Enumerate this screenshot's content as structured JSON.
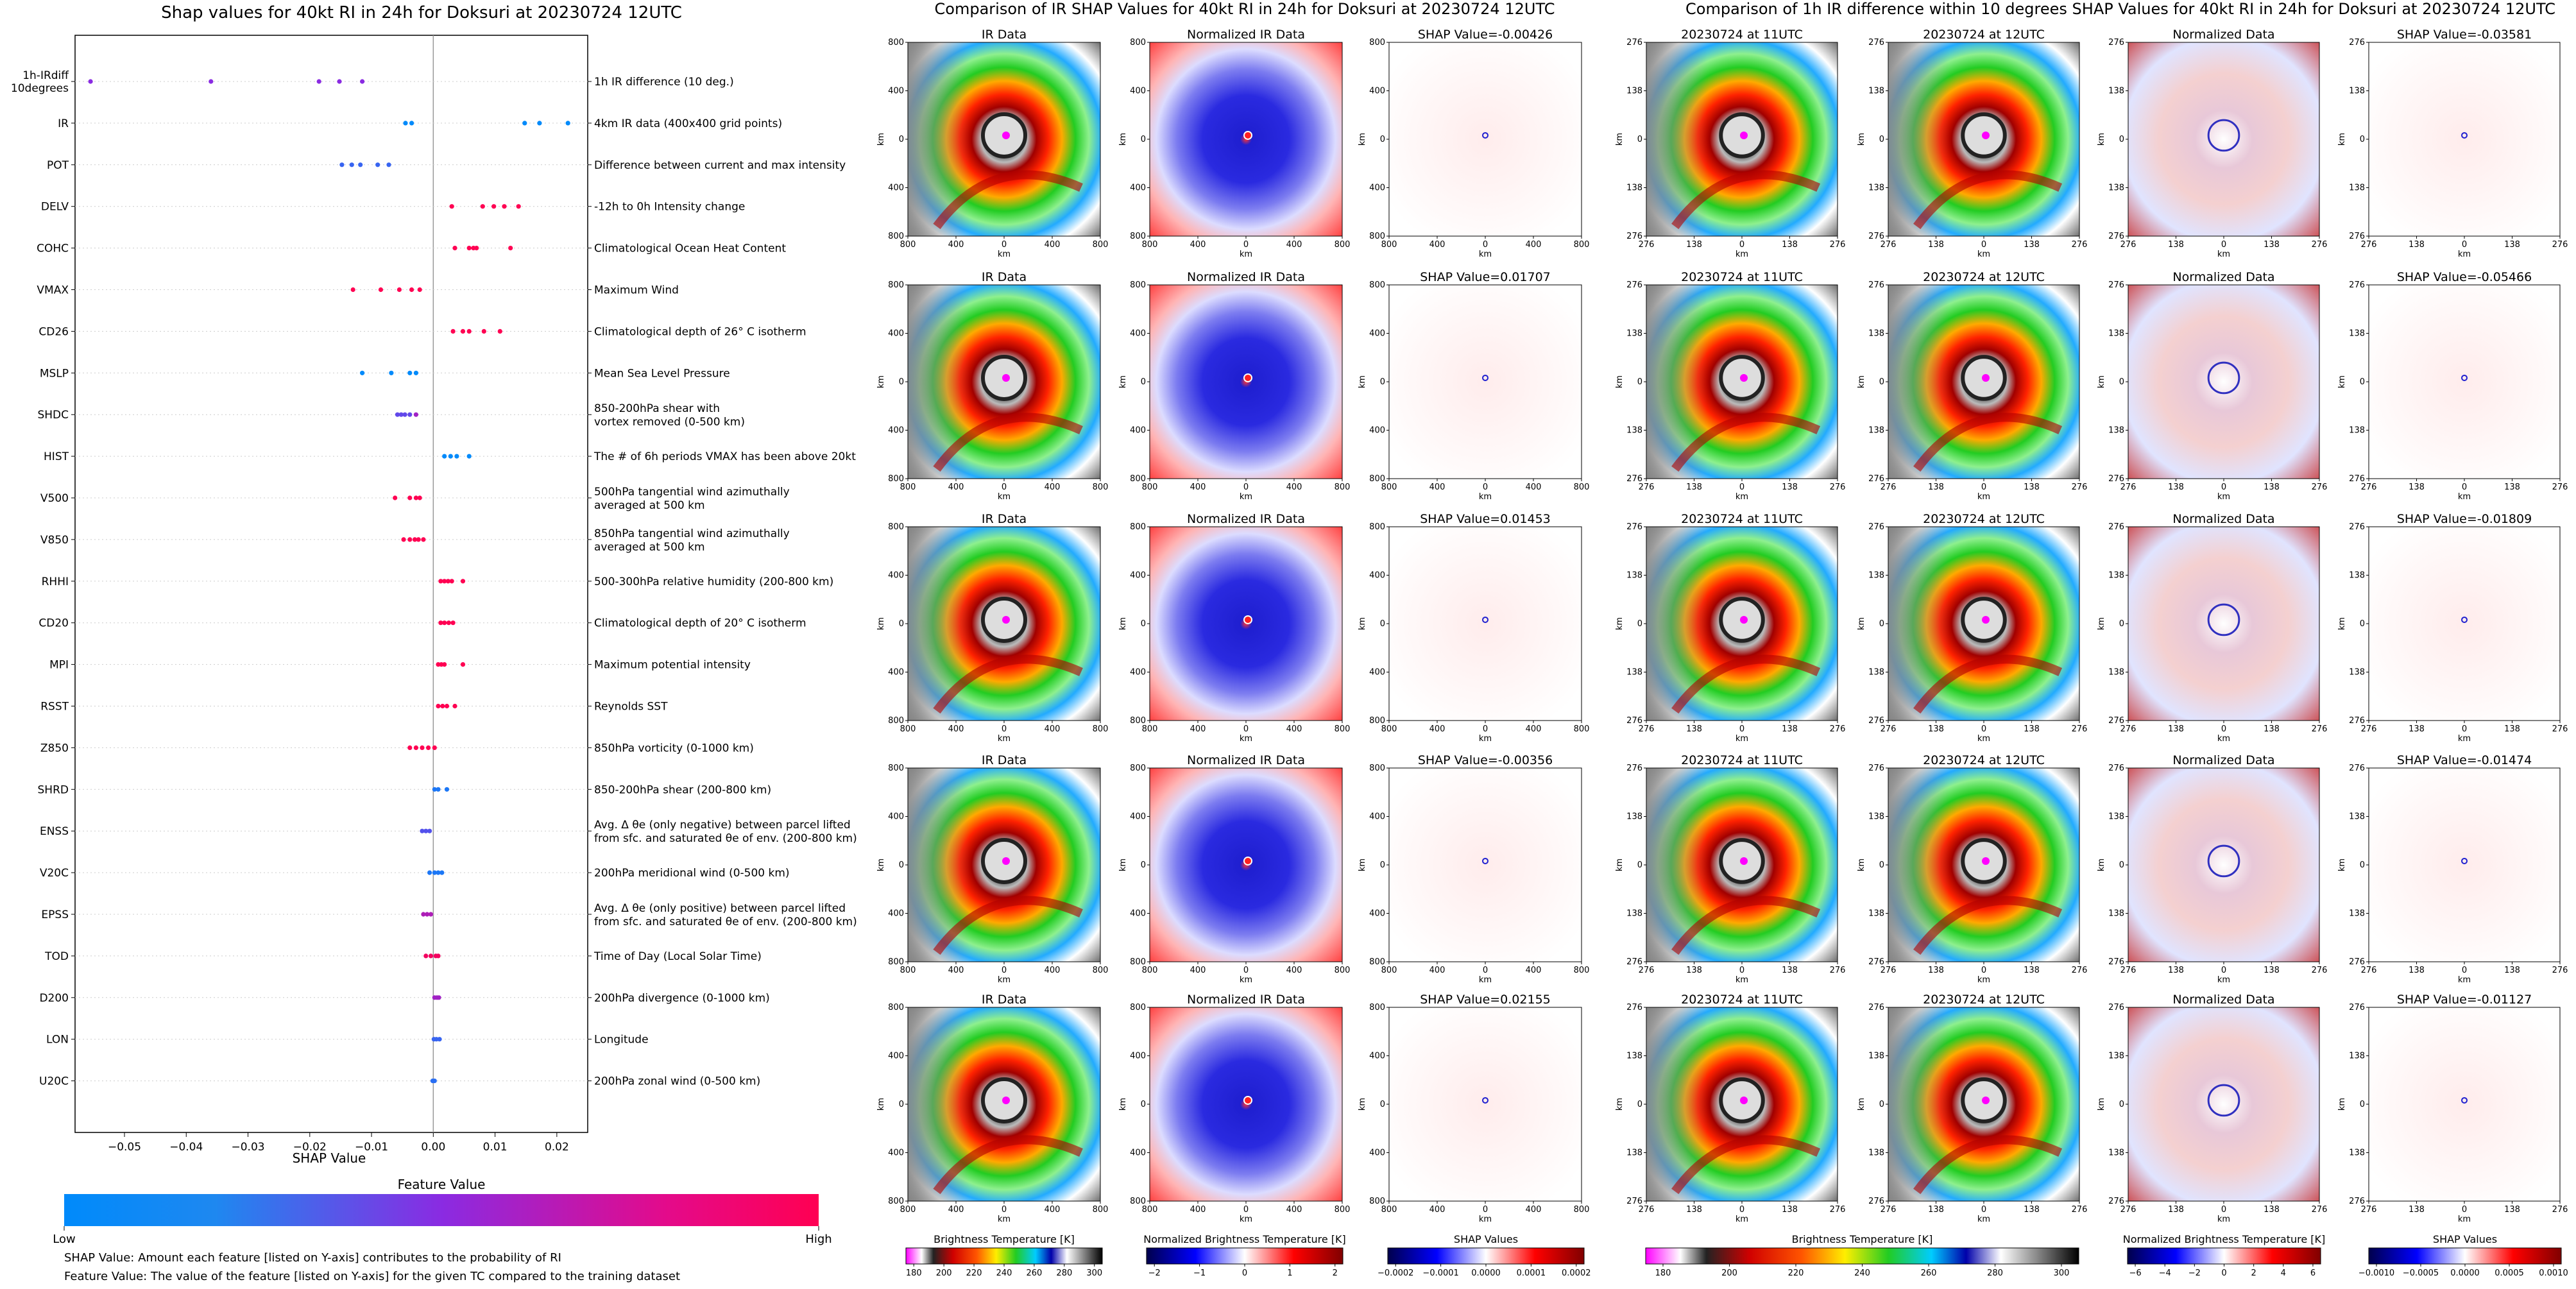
{
  "figure": {
    "left_title": "Shap values for 40kt RI in 24h for Doksuri at 20230724 12UTC",
    "middle_title": "Comparison of IR SHAP Values for 40kt RI in 24h for Doksuri at 20230724 12UTC",
    "right_title": "Comparison of 1h IR difference within 10 degrees SHAP Values for 40kt RI in 24h for Doksuri at 20230724 12UTC"
  },
  "chart_data": [
    {
      "type": "scatter",
      "name": "shap_summary",
      "title": "Shap values for 40kt RI in 24h for Doksuri at 20230724 12UTC",
      "xlabel": "SHAP Value",
      "xlim": [
        -0.058,
        0.025
      ],
      "xticks": [
        -0.05,
        -0.04,
        -0.03,
        -0.02,
        -0.01,
        0.0,
        0.01,
        0.02
      ],
      "xtick_labels": [
        "−0.05",
        "−0.04",
        "−0.03",
        "−0.02",
        "−0.01",
        "0.00",
        "0.01",
        "0.02"
      ],
      "colorbar": {
        "label": "Feature Value",
        "low": "Low",
        "high": "High",
        "colors": [
          "#008afb",
          "#8a2be2",
          "#ff0052"
        ]
      },
      "notes": [
        "SHAP Value: Amount each feature [listed on Y-axis] contributes to the probability of RI",
        "Feature Value: The value of the feature [listed on Y-axis] for the given TC compared to the training dataset"
      ],
      "features": [
        {
          "name": "1h-IRdiff\n10degrees",
          "desc": "1h IR difference (10 deg.)",
          "points": [
            [
              -0.0555,
              0.5
            ],
            [
              -0.036,
              0.5
            ],
            [
              -0.0185,
              0.5
            ],
            [
              -0.0152,
              0.5
            ],
            [
              -0.0115,
              0.5
            ]
          ]
        },
        {
          "name": "IR",
          "desc": "4km IR data (400x400 grid points)",
          "points": [
            [
              -0.0045,
              0.0
            ],
            [
              -0.0035,
              0.0
            ],
            [
              0.0148,
              0.0
            ],
            [
              0.0172,
              0.0
            ],
            [
              0.0218,
              0.0
            ]
          ]
        },
        {
          "name": "POT",
          "desc": "Difference between current and max intensity",
          "points": [
            [
              -0.0148,
              0.2
            ],
            [
              -0.0132,
              0.2
            ],
            [
              -0.0118,
              0.2
            ],
            [
              -0.009,
              0.2
            ],
            [
              -0.0072,
              0.2
            ]
          ]
        },
        {
          "name": "DELV",
          "desc": "-12h to 0h Intensity change",
          "points": [
            [
              0.003,
              1.0
            ],
            [
              0.008,
              1.0
            ],
            [
              0.0098,
              1.0
            ],
            [
              0.0115,
              1.0
            ],
            [
              0.0138,
              1.0
            ]
          ]
        },
        {
          "name": "COHC",
          "desc": "Climatological Ocean Heat Content",
          "points": [
            [
              0.0035,
              1.0
            ],
            [
              0.0058,
              1.0
            ],
            [
              0.0065,
              1.0
            ],
            [
              0.007,
              1.0
            ],
            [
              0.0125,
              1.0
            ]
          ]
        },
        {
          "name": "VMAX",
          "desc": "Maximum Wind",
          "points": [
            [
              -0.013,
              1.0
            ],
            [
              -0.0085,
              1.0
            ],
            [
              -0.0055,
              1.0
            ],
            [
              -0.0035,
              1.0
            ],
            [
              -0.0022,
              1.0
            ]
          ]
        },
        {
          "name": "CD26",
          "desc": "Climatological depth of 26° C isotherm",
          "points": [
            [
              0.0032,
              1.0
            ],
            [
              0.0048,
              1.0
            ],
            [
              0.0058,
              1.0
            ],
            [
              0.0082,
              1.0
            ],
            [
              0.0108,
              1.0
            ]
          ]
        },
        {
          "name": "MSLP",
          "desc": "Mean Sea Level Pressure",
          "points": [
            [
              -0.0115,
              0.0
            ],
            [
              -0.0068,
              0.0
            ],
            [
              -0.0038,
              0.0
            ],
            [
              -0.0028,
              0.0
            ]
          ]
        },
        {
          "name": "SHDC",
          "desc": "850-200hPa shear with\nvortex removed (0-500 km)",
          "points": [
            [
              -0.0058,
              0.35
            ],
            [
              -0.0052,
              0.35
            ],
            [
              -0.0046,
              0.35
            ],
            [
              -0.0038,
              0.35
            ],
            [
              -0.0028,
              0.6
            ]
          ]
        },
        {
          "name": "HIST",
          "desc": "The # of 6h periods VMAX has been above 20kt",
          "points": [
            [
              0.0018,
              0.0
            ],
            [
              0.0028,
              0.0
            ],
            [
              0.0038,
              0.0
            ],
            [
              0.0058,
              0.0
            ]
          ]
        },
        {
          "name": "V500",
          "desc": "500hPa tangential wind azimuthally\naveraged at 500 km",
          "points": [
            [
              -0.0062,
              1.0
            ],
            [
              -0.0038,
              1.0
            ],
            [
              -0.0028,
              1.0
            ],
            [
              -0.0022,
              1.0
            ]
          ]
        },
        {
          "name": "V850",
          "desc": "850hPa tangential wind azimuthally\naveraged at 500 km",
          "points": [
            [
              -0.0048,
              1.0
            ],
            [
              -0.0038,
              1.0
            ],
            [
              -0.003,
              1.0
            ],
            [
              -0.0024,
              1.0
            ],
            [
              -0.0016,
              1.0
            ]
          ]
        },
        {
          "name": "RHHI",
          "desc": "500-300hPa relative humidity (200-800 km)",
          "points": [
            [
              0.0012,
              1.0
            ],
            [
              0.0018,
              1.0
            ],
            [
              0.0024,
              1.0
            ],
            [
              0.003,
              1.0
            ],
            [
              0.0048,
              1.0
            ]
          ]
        },
        {
          "name": "CD20",
          "desc": "Climatological depth of 20° C isotherm",
          "points": [
            [
              0.0012,
              1.0
            ],
            [
              0.0018,
              1.0
            ],
            [
              0.0025,
              1.0
            ],
            [
              0.0032,
              1.0
            ]
          ]
        },
        {
          "name": "MPI",
          "desc": "Maximum potential intensity",
          "points": [
            [
              0.0008,
              1.0
            ],
            [
              0.0013,
              1.0
            ],
            [
              0.0018,
              1.0
            ],
            [
              0.0048,
              1.0
            ]
          ]
        },
        {
          "name": "RSST",
          "desc": "Reynolds SST",
          "points": [
            [
              0.0008,
              1.0
            ],
            [
              0.0015,
              1.0
            ],
            [
              0.0022,
              1.0
            ],
            [
              0.0035,
              1.0
            ]
          ]
        },
        {
          "name": "Z850",
          "desc": "850hPa vorticity (0-1000 km)",
          "points": [
            [
              -0.0038,
              1.0
            ],
            [
              -0.0028,
              1.0
            ],
            [
              -0.0018,
              1.0
            ],
            [
              -0.0008,
              1.0
            ],
            [
              0.0002,
              1.0
            ]
          ]
        },
        {
          "name": "SHRD",
          "desc": "850-200hPa shear (200-800 km)",
          "points": [
            [
              0.0002,
              0.1
            ],
            [
              0.0008,
              0.1
            ],
            [
              0.0022,
              0.1
            ]
          ]
        },
        {
          "name": "ENSS",
          "desc": "Avg. Δ θe (only negative) between parcel lifted\nfrom sfc. and saturated θe of env. (200-800 km)",
          "points": [
            [
              -0.0018,
              0.3
            ],
            [
              -0.0012,
              0.3
            ],
            [
              -0.0006,
              0.3
            ]
          ]
        },
        {
          "name": "V20C",
          "desc": "200hPa meridional wind (0-500 km)",
          "points": [
            [
              -0.0006,
              0.1
            ],
            [
              0.0002,
              0.1
            ],
            [
              0.0008,
              0.1
            ],
            [
              0.0014,
              0.1
            ]
          ]
        },
        {
          "name": "EPSS",
          "desc": "Avg. Δ θe (only positive) between parcel lifted\nfrom sfc. and saturated θe of env. (200-800 km)",
          "points": [
            [
              -0.0016,
              0.65
            ],
            [
              -0.001,
              0.65
            ],
            [
              -0.0004,
              0.65
            ]
          ]
        },
        {
          "name": "TOD",
          "desc": "Time of Day (Local Solar Time)",
          "points": [
            [
              -0.0012,
              0.95
            ],
            [
              -0.0004,
              0.95
            ],
            [
              0.0004,
              0.95
            ],
            [
              0.0008,
              0.95
            ]
          ]
        },
        {
          "name": "D200",
          "desc": "200hPa divergence (0-1000 km)",
          "points": [
            [
              0.0002,
              0.6
            ],
            [
              0.0006,
              0.6
            ],
            [
              0.0009,
              0.6
            ]
          ]
        },
        {
          "name": "LON",
          "desc": "Longitude",
          "points": [
            [
              0.0001,
              0.2
            ],
            [
              0.0005,
              0.2
            ],
            [
              0.001,
              0.2
            ]
          ]
        },
        {
          "name": "U20C",
          "desc": "200hPa zonal wind (0-500 km)",
          "points": [
            [
              -0.0001,
              0.15
            ],
            [
              0.0002,
              0.15
            ]
          ]
        }
      ]
    },
    {
      "type": "heatmap",
      "name": "ir_comparison_grid",
      "title": "Comparison of IR SHAP Values for 40kt RI in 24h for Doksuri at 20230724 12UTC",
      "column_titles": [
        "IR Data",
        "Normalized IR Data"
      ],
      "shap_titles": [
        "SHAP Value=-0.00426",
        "SHAP Value=0.01707",
        "SHAP Value=0.01453",
        "SHAP Value=-0.00356",
        "SHAP Value=0.02155"
      ],
      "xlabel": "km",
      "ylabel": "km",
      "ticks": [
        "800",
        "400",
        "0",
        "400",
        "800"
      ],
      "colorbars": [
        {
          "label": "Brightness Temperature [K]",
          "ticks": [
            "180",
            "200",
            "220",
            "240",
            "260",
            "280",
            "300"
          ]
        },
        {
          "label": "Normalized Brightness Temperature [K]",
          "ticks": [
            "−2",
            "−1",
            "0",
            "1",
            "2"
          ]
        },
        {
          "label": "SHAP Values",
          "ticks": [
            "−0.0002",
            "−0.0001",
            "0.0000",
            "0.0001",
            "0.0002"
          ]
        }
      ]
    },
    {
      "type": "heatmap",
      "name": "irdiff_comparison_grid",
      "title": "Comparison of 1h IR difference within 10 degrees SHAP Values for 40kt RI in 24h for Doksuri at 20230724 12UTC",
      "column_titles": [
        "20230724 at 11UTC",
        "20230724 at 12UTC",
        "Normalized Data"
      ],
      "shap_titles": [
        "SHAP Value=-0.03581",
        "SHAP Value=-0.05466",
        "SHAP Value=-0.01809",
        "SHAP Value=-0.01474",
        "SHAP Value=-0.01127"
      ],
      "xlabel": "km",
      "ylabel": "km",
      "ticks": [
        "276",
        "138",
        "0",
        "138",
        "276"
      ],
      "colorbars": [
        {
          "label": "Brightness Temperature [K]",
          "ticks": [
            "180",
            "200",
            "220",
            "240",
            "260",
            "280",
            "300"
          ]
        },
        {
          "label": "Normalized Brightness Temperature [K]",
          "ticks": [
            "−6",
            "−4",
            "−2",
            "0",
            "2",
            "4",
            "6"
          ]
        },
        {
          "label": "SHAP Values",
          "ticks": [
            "−0.0010",
            "−0.0005",
            "0.0000",
            "0.0005",
            "0.0010"
          ]
        }
      ]
    }
  ]
}
